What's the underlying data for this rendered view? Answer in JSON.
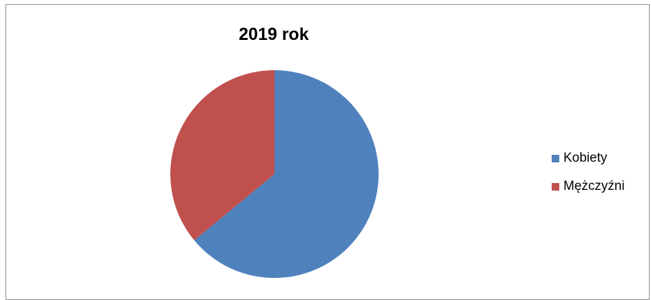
{
  "chart_data": {
    "type": "pie",
    "title": "2019 rok",
    "categories": [
      "Kobiety",
      "Mężczyźni"
    ],
    "values": [
      64,
      36
    ],
    "colors": [
      "#4f81bd",
      "#c0504d"
    ],
    "legend_position": "right"
  }
}
